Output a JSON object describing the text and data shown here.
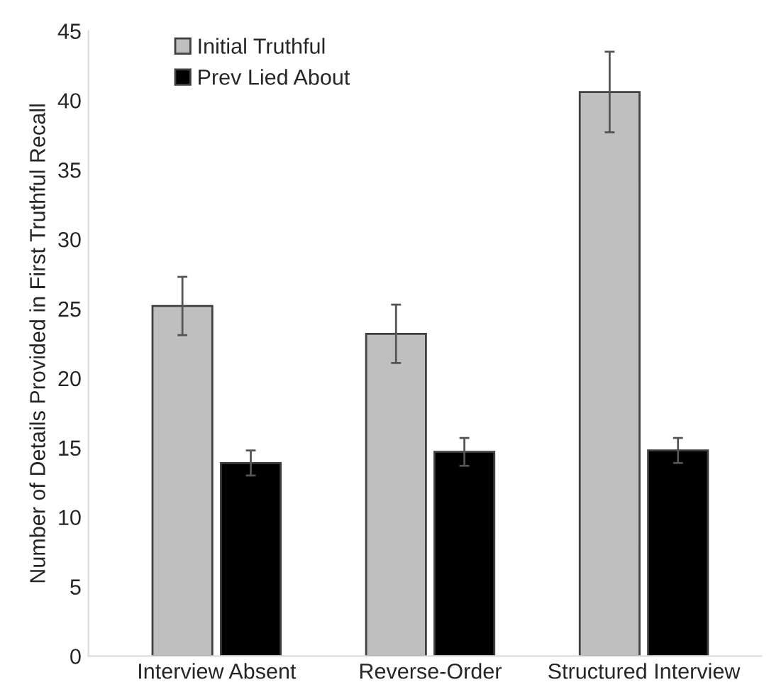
{
  "chart_data": {
    "type": "bar",
    "ylabel": "Number of Details Provided in First Truthful Recall",
    "categories": [
      "Interview Absent",
      "Reverse-Order",
      "Structured Interview"
    ],
    "series": [
      {
        "name": "Initial Truthful",
        "color": "#bfbfbf",
        "values": [
          25.2,
          23.2,
          40.6
        ],
        "errors": [
          2.1,
          2.1,
          2.9
        ]
      },
      {
        "name": "Prev Lied About",
        "color": "#000000",
        "values": [
          13.9,
          14.7,
          14.8
        ],
        "errors": [
          0.9,
          1.0,
          0.9
        ]
      }
    ],
    "ylim": [
      0,
      45
    ],
    "yticks": [
      0,
      5,
      10,
      15,
      20,
      25,
      30,
      35,
      40,
      45
    ],
    "grid": false,
    "legend": "top left"
  }
}
